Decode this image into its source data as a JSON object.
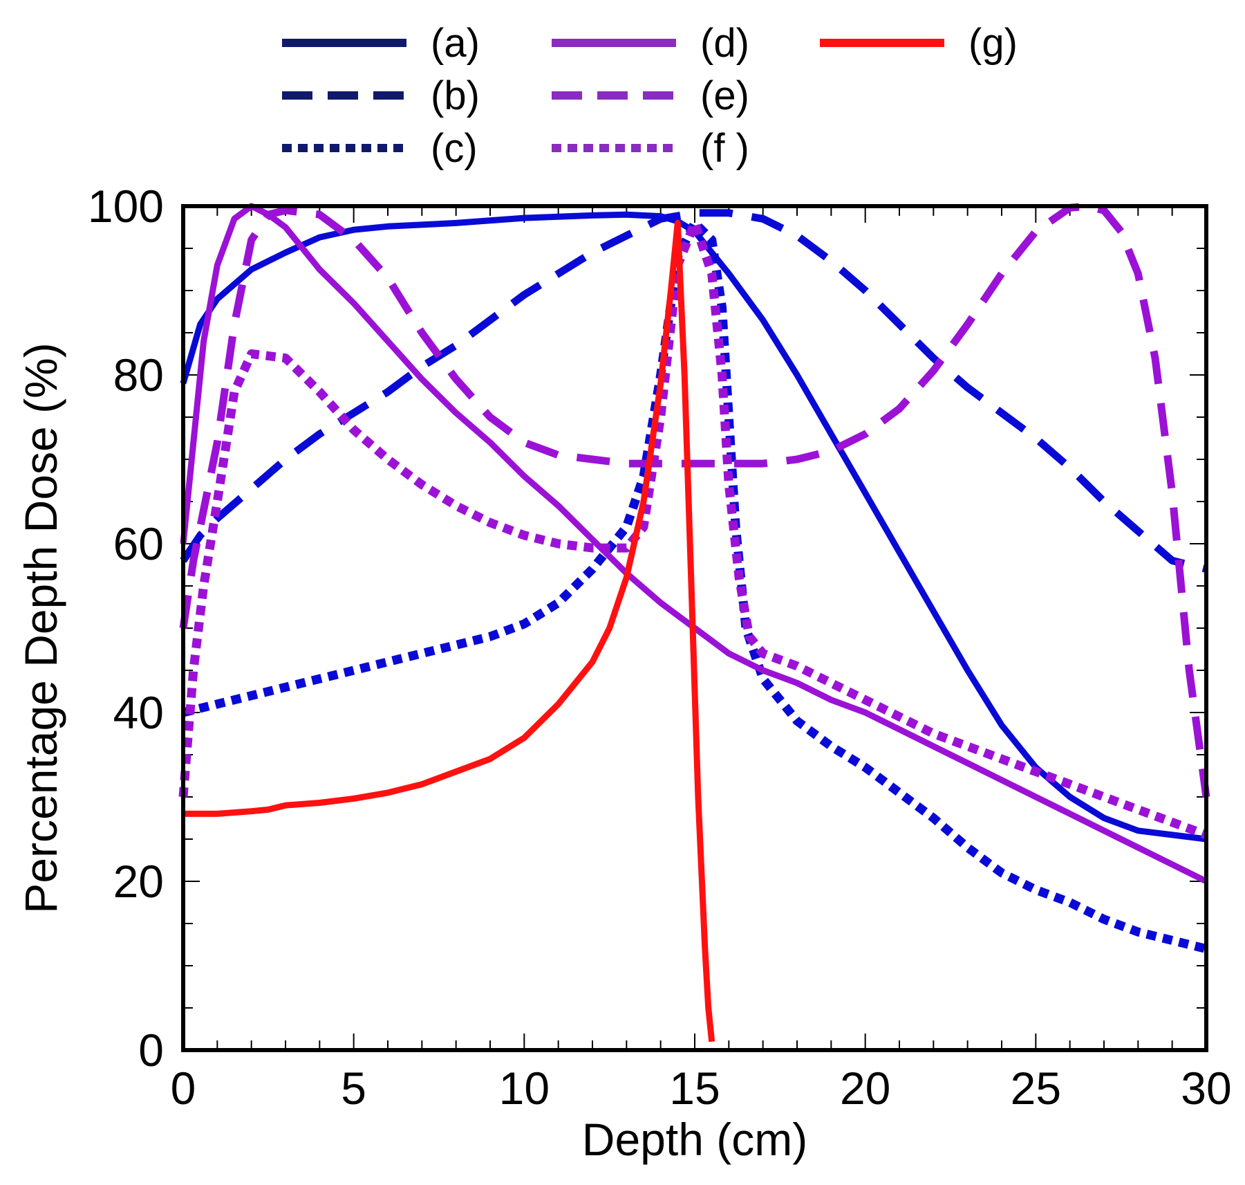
{
  "chart_data": {
    "type": "line",
    "title": "",
    "xlabel": "Depth (cm)",
    "ylabel": "Percentage Depth Dose (%)",
    "xlim": [
      0,
      30
    ],
    "ylim": [
      0,
      100
    ],
    "xticks": [
      0,
      5,
      10,
      15,
      20,
      25,
      30
    ],
    "yticks": [
      0,
      20,
      40,
      60,
      80,
      100
    ],
    "legend_position": "top",
    "series": [
      {
        "name": "(a)",
        "legend_label": "(a)",
        "color": "#0a0ad6",
        "legend_color": "#0f1a6b",
        "style": "solid",
        "x": [
          0,
          0.5,
          1,
          2,
          3,
          4,
          5,
          6,
          8,
          10,
          12,
          13,
          14,
          14.5,
          15,
          16,
          17,
          18,
          19,
          20,
          21,
          22,
          23,
          24,
          25,
          26,
          27,
          28,
          29,
          30
        ],
        "y": [
          79,
          86,
          89,
          92.5,
          94.5,
          96.3,
          97.2,
          97.6,
          98,
          98.6,
          98.9,
          99,
          98.8,
          98.2,
          97,
          92,
          86.5,
          80,
          73,
          66,
          59,
          52,
          45,
          38.5,
          33.5,
          30,
          27.5,
          26,
          25.5,
          25
        ]
      },
      {
        "name": "(b)",
        "legend_label": "(b)",
        "color": "#0a0ad6",
        "legend_color": "#0f1a6b",
        "style": "dashed",
        "x": [
          0,
          0.5,
          1,
          2,
          3,
          4,
          5,
          6,
          7,
          8,
          9,
          10,
          11,
          12,
          13,
          14,
          15,
          16,
          17,
          18,
          19,
          20,
          21,
          22,
          23,
          24,
          25,
          26,
          27,
          28,
          29,
          30
        ],
        "y": [
          58,
          61,
          63,
          66.5,
          70,
          73,
          75.5,
          78,
          81,
          83.5,
          86.5,
          89.5,
          92,
          94.5,
          96.5,
          98.5,
          99.2,
          99.2,
          98.5,
          96.5,
          93.5,
          90,
          86,
          82,
          78.5,
          75.5,
          72.5,
          69,
          65,
          61.5,
          58,
          57
        ]
      },
      {
        "name": "(c)",
        "legend_label": "(c)",
        "color": "#0a0ad6",
        "legend_color": "#0f1a6b",
        "style": "dotted",
        "x": [
          0,
          1,
          2,
          3,
          4,
          5,
          6,
          7,
          8,
          9,
          10,
          11,
          12,
          13,
          13.5,
          14,
          14.5,
          15,
          15.5,
          15.8,
          16,
          16.2,
          16.5,
          17,
          18,
          19,
          20,
          21,
          22,
          23,
          24,
          25,
          26,
          27,
          28,
          29,
          30
        ],
        "y": [
          40,
          41,
          42,
          43,
          44,
          45,
          46,
          47,
          48,
          49,
          50.5,
          53,
          57,
          62,
          68,
          80,
          94,
          98,
          96,
          88,
          75,
          62,
          50,
          44,
          39,
          36,
          33.5,
          30.5,
          27.5,
          24,
          21,
          19,
          17.5,
          15.5,
          14,
          13,
          12
        ]
      },
      {
        "name": "(d)",
        "legend_label": "(d)",
        "color": "#9b12d6",
        "legend_color": "#8a2cc0",
        "style": "solid",
        "x": [
          0,
          0.3,
          0.6,
          1,
          1.5,
          2,
          2.5,
          3,
          4,
          5,
          6,
          7,
          8,
          9,
          10,
          11,
          12,
          13,
          14,
          15,
          16,
          17,
          18,
          19,
          20,
          21,
          22,
          23,
          24,
          25,
          26,
          27,
          28,
          29,
          30
        ],
        "y": [
          60,
          72,
          84,
          93,
          98.5,
          100,
          99,
          97.5,
          92.5,
          88.5,
          84,
          79.5,
          75.5,
          72,
          68,
          64.5,
          60.5,
          56.5,
          53,
          50,
          47,
          45,
          43.5,
          41.5,
          40,
          38,
          36,
          34,
          32,
          30,
          28,
          26,
          24,
          22,
          20
        ]
      },
      {
        "name": "(e)",
        "legend_label": "(e)",
        "color": "#9b12d6",
        "legend_color": "#8a2cc0",
        "style": "dashed",
        "x": [
          0,
          0.3,
          0.6,
          1,
          1.5,
          2,
          2.5,
          3,
          4,
          5,
          6,
          7,
          8,
          9,
          10,
          11,
          12,
          13,
          14,
          15,
          16,
          17,
          18,
          19,
          20,
          21,
          22,
          23,
          24,
          25,
          26,
          26.5,
          27,
          27.5,
          28,
          28.5,
          29,
          29.5,
          30
        ],
        "y": [
          50,
          58,
          64,
          72,
          86,
          96,
          99,
          99.5,
          99,
          96,
          91.5,
          85,
          79.5,
          75,
          72,
          70.5,
          70,
          69.5,
          69.5,
          69.5,
          69.5,
          69.5,
          70,
          71,
          73,
          76,
          80.5,
          86,
          92,
          97,
          99.8,
          100,
          99.5,
          97,
          92,
          82,
          66,
          45,
          30
        ]
      },
      {
        "name": "(f)",
        "legend_label": "(f )",
        "color": "#9b12d6",
        "legend_color": "#8a2cc0",
        "style": "dotted",
        "x": [
          0,
          0.3,
          0.6,
          1,
          1.5,
          2,
          3,
          4,
          5,
          6,
          7,
          8,
          9,
          10,
          11,
          12,
          13,
          13.5,
          14,
          14.5,
          15,
          15.5,
          15.8,
          16,
          16.3,
          16.6,
          17,
          18,
          19,
          20,
          21,
          22,
          23,
          24,
          25,
          26,
          27,
          28,
          29,
          30
        ],
        "y": [
          30,
          45,
          55,
          65,
          78,
          82.5,
          82,
          78,
          73.5,
          70,
          67,
          64.5,
          62.5,
          61,
          60,
          59.5,
          59.5,
          62,
          75,
          93,
          98,
          92,
          80,
          67,
          56,
          49,
          47,
          45.5,
          43.5,
          41.5,
          39.5,
          37.5,
          36,
          34.5,
          33,
          31.5,
          30,
          28.5,
          27,
          25.5
        ]
      },
      {
        "name": "(g)",
        "legend_label": "(g)",
        "color": "#ff1111",
        "legend_color": "#ff1111",
        "style": "solid",
        "x": [
          0,
          1,
          2,
          2.5,
          3,
          4,
          5,
          6,
          7,
          8,
          9,
          10,
          11,
          12,
          12.5,
          13,
          13.5,
          14,
          14.3,
          14.5,
          14.7,
          14.9,
          15.1,
          15.3,
          15.4,
          15.5
        ],
        "y": [
          28,
          28,
          28.3,
          28.5,
          29,
          29.3,
          29.8,
          30.5,
          31.5,
          33,
          34.5,
          37,
          41,
          46,
          50,
          56,
          65,
          79,
          90,
          98,
          80,
          55,
          30,
          12,
          5,
          1
        ]
      }
    ]
  }
}
